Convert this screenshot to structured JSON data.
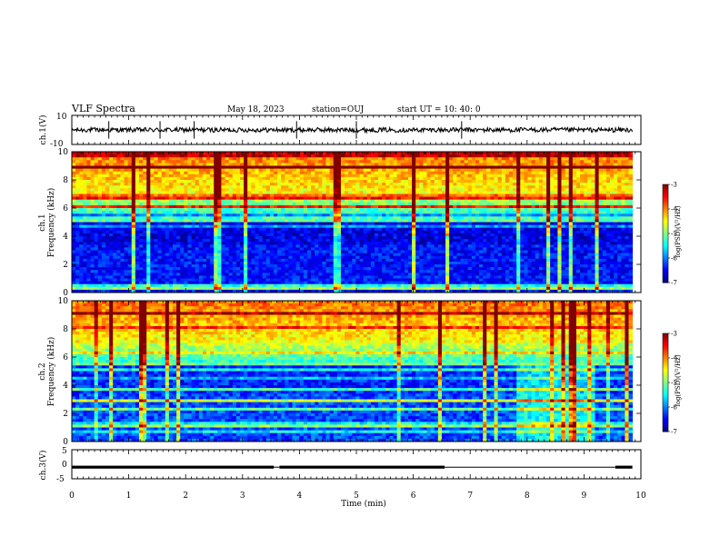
{
  "header": {
    "title": "VLF Spectra",
    "date": "May 18, 2023",
    "station": "station=OUJ",
    "start": "start UT = 10: 40: 0"
  },
  "chart_data": [
    {
      "type": "line",
      "name": "ch1-waveform",
      "ylabel": "ch.1(V)",
      "xlim": [
        0,
        10
      ],
      "ylim": [
        -10,
        10
      ],
      "yticks": [
        "10",
        "-10"
      ],
      "trace_level": 0,
      "trace_end": 9.85,
      "spikes": [
        0.65,
        1.55,
        2.15,
        3.95,
        5.0,
        6.85
      ]
    },
    {
      "type": "heatmap",
      "name": "ch1-spectrogram",
      "ylabel": "Frequency (kHz)",
      "panel_label": "ch.1",
      "xlim": [
        0,
        10
      ],
      "ylim": [
        0,
        10
      ],
      "yticks": [
        "0",
        "2",
        "4",
        "6",
        "8",
        "10"
      ],
      "data_end": 9.85,
      "colorbar": {
        "label": "log(PSD)(V²/Hz)",
        "ticks": [
          "-3",
          "-4",
          "-5",
          "-6",
          "-7"
        ],
        "range": [
          -7,
          -3
        ]
      }
    },
    {
      "type": "heatmap",
      "name": "ch2-spectrogram",
      "ylabel": "Frequency (kHz)",
      "panel_label": "ch.2",
      "xlim": [
        0,
        10
      ],
      "ylim": [
        0,
        10
      ],
      "yticks": [
        "0",
        "2",
        "4",
        "6",
        "8",
        "10"
      ],
      "data_end": 9.85,
      "colorbar": {
        "label": "log(PSD)(V²/Hz)",
        "ticks": [
          "-3",
          "-4",
          "-5",
          "-6",
          "-7"
        ],
        "range": [
          -7,
          -3
        ]
      }
    },
    {
      "type": "line",
      "name": "ch3-waveform",
      "ylabel": "ch.3(V)",
      "xlim": [
        0,
        10
      ],
      "ylim": [
        -5,
        5
      ],
      "yticks": [
        "5",
        "0",
        "-5"
      ],
      "trace_level": -1.0,
      "trace_end": 9.85,
      "gaps": [
        [
          3.55,
          3.65
        ],
        [
          6.55,
          9.55
        ]
      ]
    }
  ],
  "xaxis": {
    "label": "Time (min)",
    "ticks": [
      "0",
      "1",
      "2",
      "3",
      "4",
      "5",
      "6",
      "7",
      "8",
      "9",
      "10"
    ]
  }
}
